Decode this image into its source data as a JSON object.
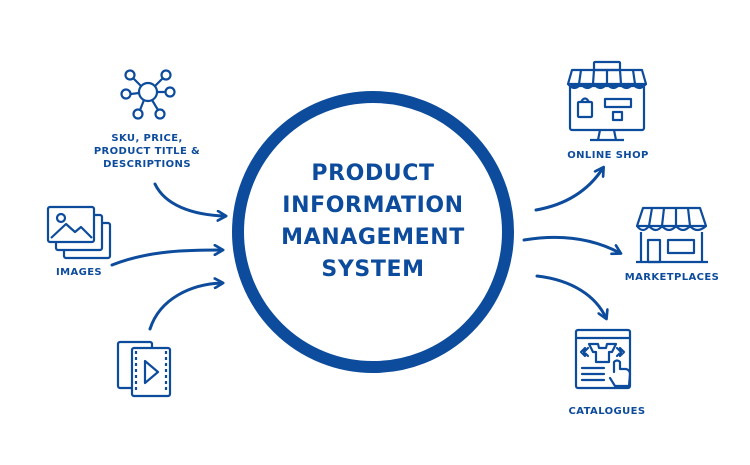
{
  "colors": {
    "primary": "#0d4c9c",
    "background": "#ffffff"
  },
  "center": {
    "lines": [
      "PRODUCT",
      "INFORMATION",
      "MANAGEMENT",
      "SYSTEM"
    ]
  },
  "inputs": [
    {
      "id": "sku",
      "icon": "network-nodes-icon",
      "lines": [
        "SKU, PRICE,",
        "PRODUCT TITLE &",
        "DESCRIPTIONS"
      ]
    },
    {
      "id": "images",
      "icon": "image-stack-icon",
      "lines": [
        "IMAGES"
      ]
    },
    {
      "id": "video",
      "icon": "video-file-icon",
      "lines": []
    }
  ],
  "outputs": [
    {
      "id": "online-shop",
      "icon": "online-shop-icon",
      "label": "ONLINE SHOP"
    },
    {
      "id": "marketplaces",
      "icon": "storefront-icon",
      "label": "MARKETPLACES"
    },
    {
      "id": "catalogues",
      "icon": "catalogue-icon",
      "label": "CATALOGUES"
    }
  ]
}
